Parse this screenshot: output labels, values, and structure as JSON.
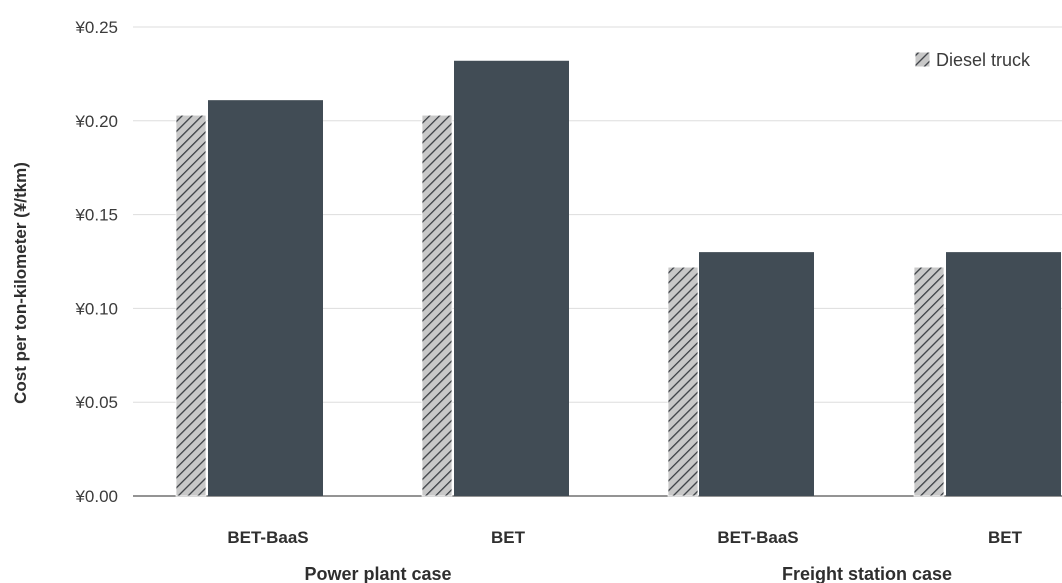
{
  "chart_data": {
    "type": "bar",
    "ylabel": "Cost per ton-kilometer (¥/tkm)",
    "ylim": [
      0,
      0.25
    ],
    "yticks": [
      "¥0.00",
      "¥0.05",
      "¥0.10",
      "¥0.15",
      "¥0.20",
      "¥0.25"
    ],
    "ytick_values": [
      0,
      0.05,
      0.1,
      0.15,
      0.2,
      0.25
    ],
    "grid": true,
    "legend_position": "top-right",
    "groups": [
      {
        "label": "Power plant case",
        "categories": [
          "BET-BaaS",
          "BET"
        ]
      },
      {
        "label": "Freight station case",
        "categories": [
          "BET-BaaS",
          "BET"
        ]
      }
    ],
    "categories": [
      "BET-BaaS",
      "BET",
      "BET-BaaS",
      "BET"
    ],
    "series": [
      {
        "name": "Diesel truck",
        "pattern": "hatched",
        "color": "#c8c8c8",
        "values": [
          0.203,
          0.203,
          0.122,
          0.122
        ]
      },
      {
        "values": [
          0.211,
          0.232,
          0.13,
          0.13
        ],
        "color": "#414c55"
      }
    ],
    "colors": {
      "bet": "#414c55",
      "diesel_fill": "#c8c8c8",
      "hatch": "#3b3f44",
      "grid": "#dddddd",
      "axis": "#555555"
    }
  }
}
